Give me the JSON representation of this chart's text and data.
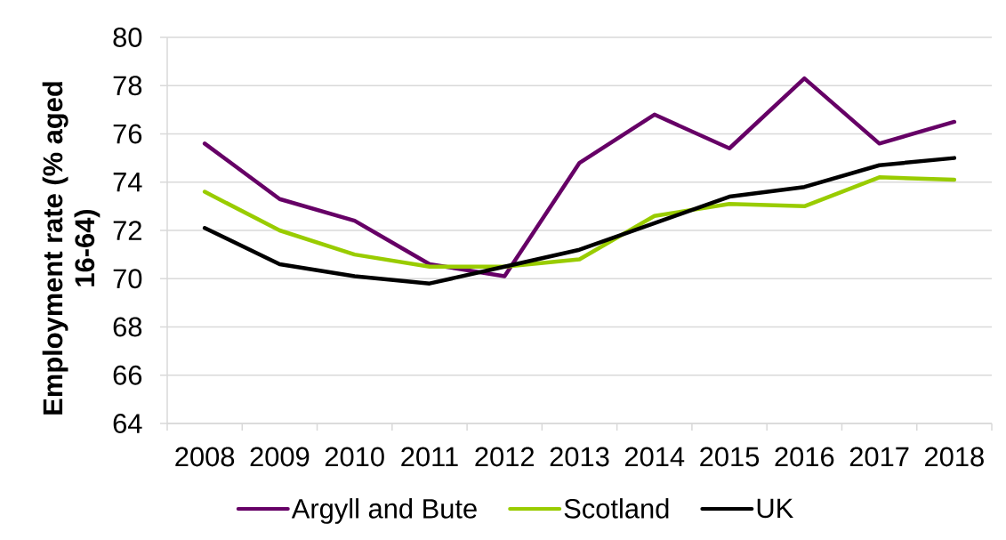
{
  "chart_data": {
    "type": "line",
    "ylabel": "Employment rate (% aged 16-64)",
    "categories": [
      "2008",
      "2009",
      "2010",
      "2011",
      "2012",
      "2013",
      "2014",
      "2015",
      "2016",
      "2017",
      "2018"
    ],
    "series": [
      {
        "name": "Argyll and Bute",
        "color": "#660066",
        "values": [
          75.6,
          73.3,
          72.4,
          70.6,
          70.1,
          74.8,
          76.8,
          75.4,
          78.3,
          75.6,
          76.5
        ]
      },
      {
        "name": "Scotland",
        "color": "#99cc00",
        "values": [
          73.6,
          72.0,
          71.0,
          70.5,
          70.5,
          70.8,
          72.6,
          73.1,
          73.0,
          74.2,
          74.1
        ]
      },
      {
        "name": "UK",
        "color": "#000000",
        "values": [
          72.1,
          70.6,
          70.1,
          69.8,
          70.5,
          71.2,
          72.3,
          73.4,
          73.8,
          74.7,
          75.0
        ]
      }
    ],
    "ylim": [
      64,
      80
    ],
    "yticks": [
      64,
      66,
      68,
      70,
      72,
      74,
      76,
      78,
      80
    ],
    "grid": "y",
    "legend": "bottom",
    "marker": "none",
    "line_style": "solid"
  }
}
